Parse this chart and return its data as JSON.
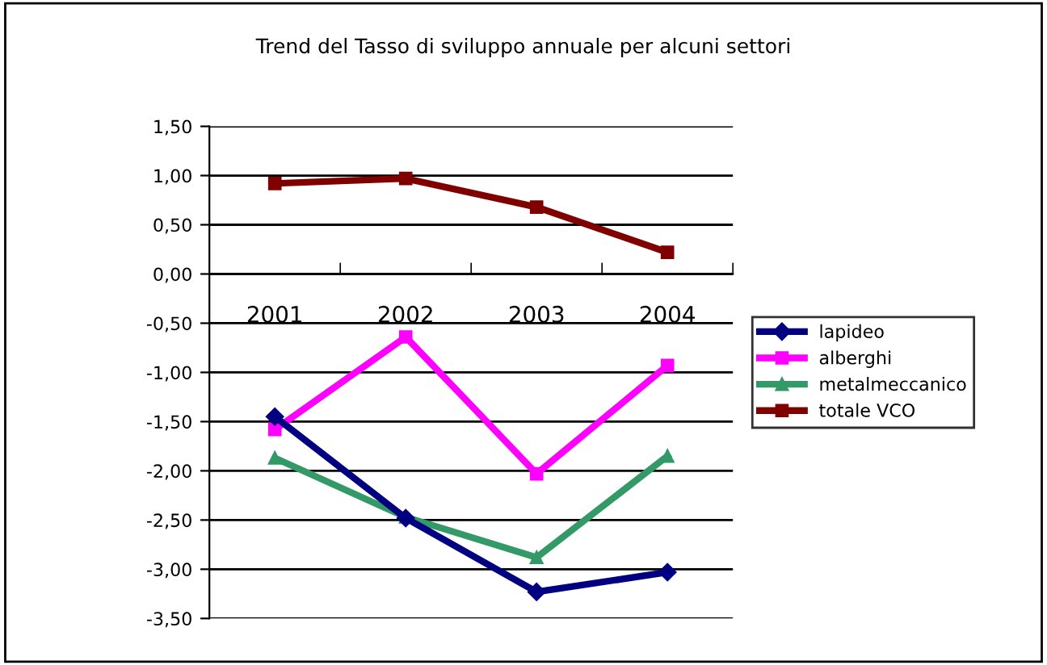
{
  "chart_data": {
    "type": "line",
    "title": "Trend del Tasso di sviluppo annuale per alcuni settori",
    "categories": [
      "2001",
      "2002",
      "2003",
      "2004"
    ],
    "series": [
      {
        "name": "lapideo",
        "color": "#000080",
        "marker": "diamond",
        "values": [
          -1.45,
          -2.48,
          -3.23,
          -3.03
        ]
      },
      {
        "name": "alberghi",
        "color": "#ff00ff",
        "marker": "square",
        "values": [
          -1.58,
          -0.64,
          -2.03,
          -0.93
        ]
      },
      {
        "name": "metalmeccanico",
        "color": "#339966",
        "marker": "triangle",
        "values": [
          -1.87,
          -2.47,
          -2.88,
          -1.85
        ]
      },
      {
        "name": "totale VCO",
        "color": "#800000",
        "marker": "square",
        "values": [
          0.92,
          0.97,
          0.68,
          0.22
        ]
      }
    ],
    "ylim": [
      -3.5,
      1.5
    ],
    "yticks": [
      {
        "value": 1.5,
        "label": "1,50"
      },
      {
        "value": 1.0,
        "label": "1,00"
      },
      {
        "value": 0.5,
        "label": "0,50"
      },
      {
        "value": 0.0,
        "label": "0,00"
      },
      {
        "value": -0.5,
        "label": "-0,50"
      },
      {
        "value": -1.0,
        "label": "-1,00"
      },
      {
        "value": -1.5,
        "label": "-1,50"
      },
      {
        "value": -2.0,
        "label": "-2,00"
      },
      {
        "value": -2.5,
        "label": "-2,50"
      },
      {
        "value": -3.0,
        "label": "-3,00"
      },
      {
        "value": -3.5,
        "label": "-3,50"
      }
    ],
    "grid": "y",
    "legend": "right",
    "line_style": "solid"
  }
}
